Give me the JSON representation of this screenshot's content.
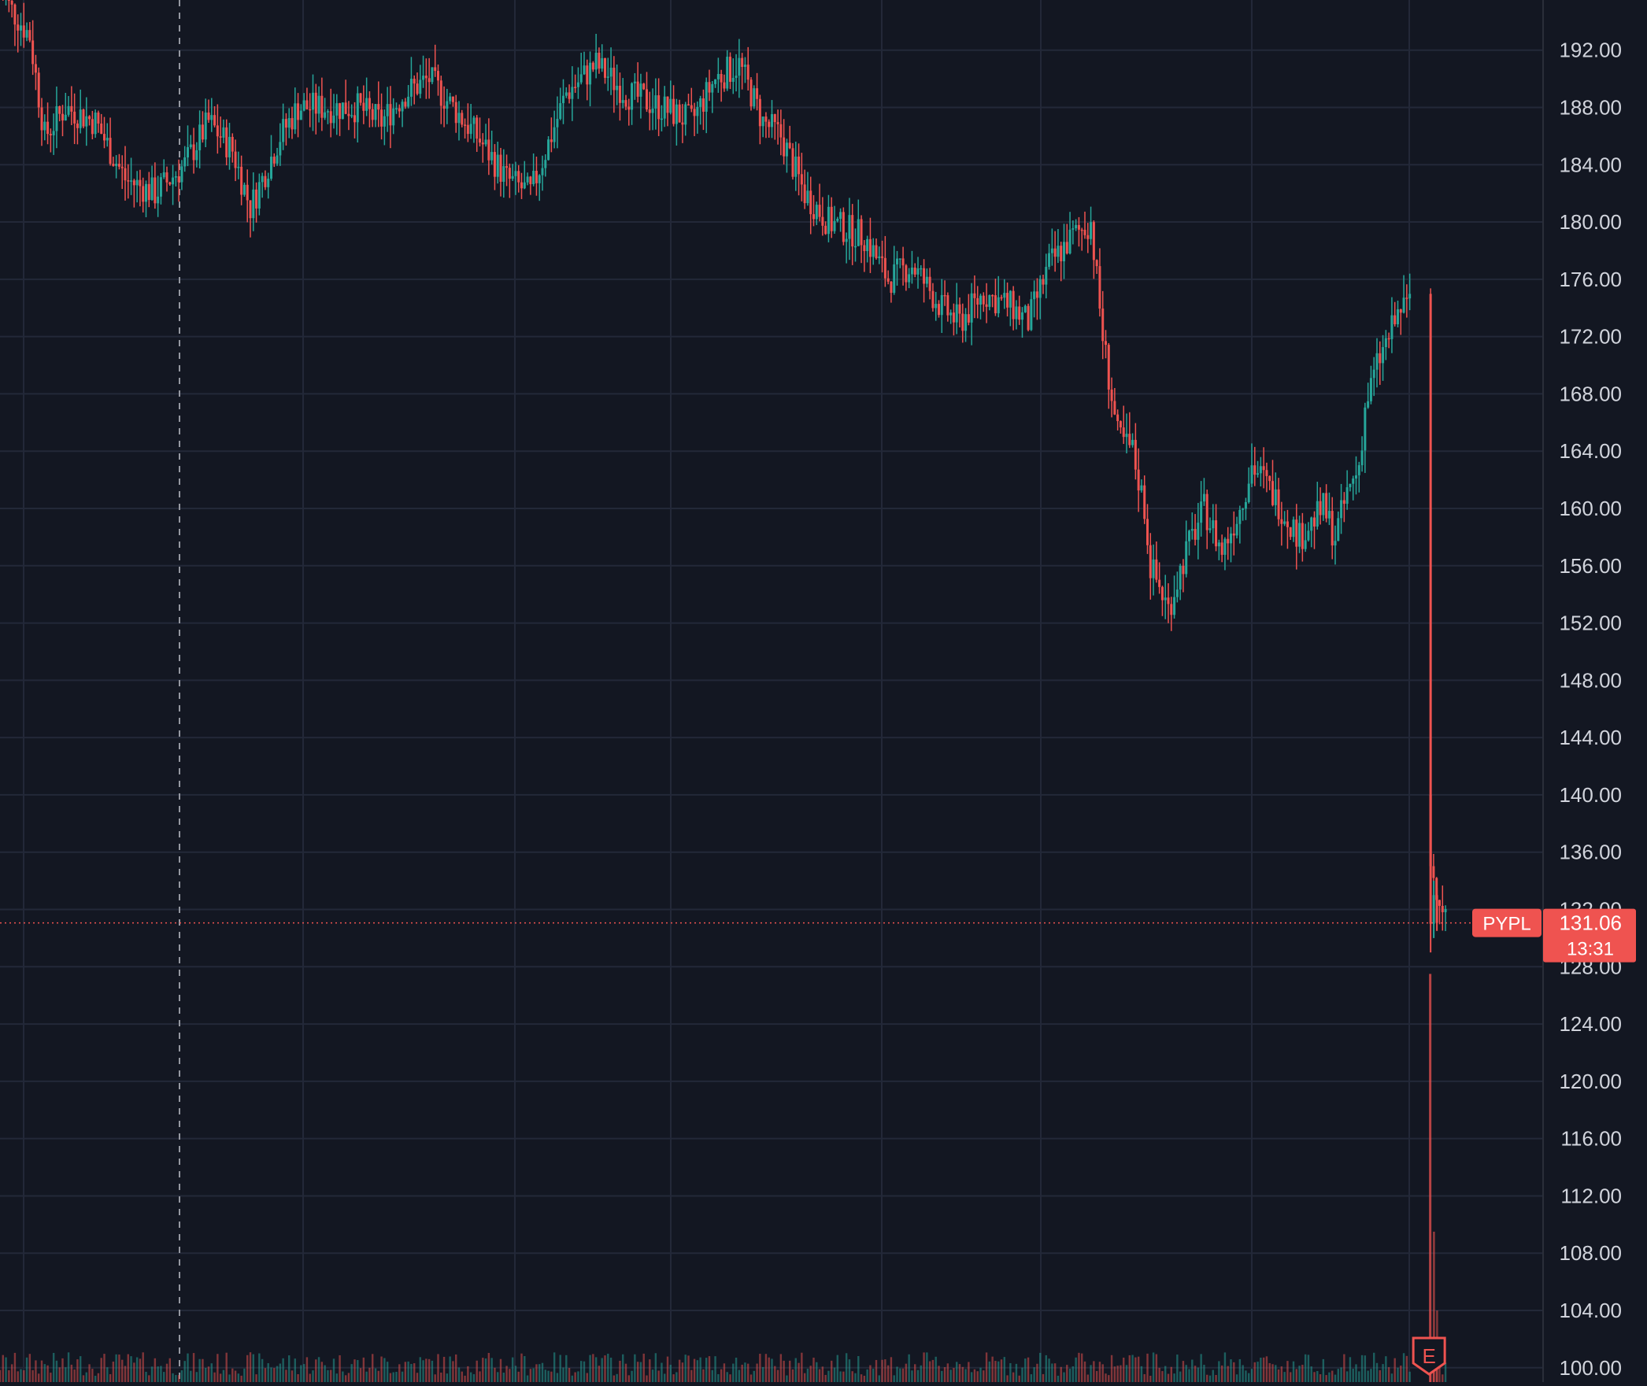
{
  "chart_data": {
    "type": "candlestick",
    "symbol": "PYPL",
    "last_price": "131.06",
    "countdown": "13:31",
    "earnings_marker": "E",
    "y_axis": {
      "ticks": [
        "192.00",
        "188.00",
        "184.00",
        "180.00",
        "176.00",
        "172.00",
        "168.00",
        "164.00",
        "160.00",
        "156.00",
        "152.00",
        "148.00",
        "144.00",
        "140.00",
        "136.00",
        "132.00",
        "128.00",
        "124.00",
        "120.00",
        "116.00",
        "112.00",
        "108.00",
        "104.00",
        "100.00"
      ],
      "ylim": [
        99.0,
        195.5
      ]
    },
    "grid": true,
    "series_path": [
      [
        0,
        196
      ],
      [
        10,
        193
      ],
      [
        15,
        186
      ],
      [
        22,
        188
      ],
      [
        32,
        187
      ],
      [
        42,
        183
      ],
      [
        52,
        182
      ],
      [
        62,
        184
      ],
      [
        70,
        187
      ],
      [
        78,
        185
      ],
      [
        84,
        181
      ],
      [
        94,
        186
      ],
      [
        100,
        188
      ],
      [
        110,
        188
      ],
      [
        120,
        188
      ],
      [
        128,
        187
      ],
      [
        136,
        189
      ],
      [
        144,
        190
      ],
      [
        152,
        188
      ],
      [
        160,
        186
      ],
      [
        170,
        183
      ],
      [
        178,
        182
      ],
      [
        190,
        189
      ],
      [
        200,
        191
      ],
      [
        210,
        189
      ],
      [
        222,
        188
      ],
      [
        232,
        187
      ],
      [
        240,
        190
      ],
      [
        248,
        191
      ],
      [
        256,
        187
      ],
      [
        262,
        186
      ],
      [
        270,
        182
      ],
      [
        278,
        180
      ],
      [
        290,
        179
      ],
      [
        298,
        176
      ],
      [
        306,
        177
      ],
      [
        316,
        174
      ],
      [
        322,
        173
      ],
      [
        330,
        175
      ],
      [
        340,
        174
      ],
      [
        345,
        173
      ],
      [
        352,
        177
      ],
      [
        360,
        179
      ],
      [
        366,
        180
      ],
      [
        370,
        172
      ],
      [
        375,
        165
      ],
      [
        380,
        164
      ],
      [
        384,
        160
      ],
      [
        386,
        156
      ],
      [
        392,
        153
      ],
      [
        398,
        157
      ],
      [
        404,
        160
      ],
      [
        410,
        157
      ],
      [
        416,
        160
      ],
      [
        420,
        163
      ],
      [
        424,
        162
      ],
      [
        430,
        160
      ],
      [
        436,
        158
      ],
      [
        440,
        159
      ],
      [
        444,
        160
      ],
      [
        448,
        158
      ],
      [
        452,
        161
      ],
      [
        456,
        163
      ],
      [
        458,
        167
      ],
      [
        462,
        170
      ],
      [
        466,
        172
      ],
      [
        470,
        174
      ],
      [
        472,
        174
      ],
      [
        474,
        176
      ],
      [
        480,
        135
      ],
      [
        486,
        131
      ]
    ],
    "x_range": [
      0,
      490
    ],
    "earnings_index": 480
  }
}
